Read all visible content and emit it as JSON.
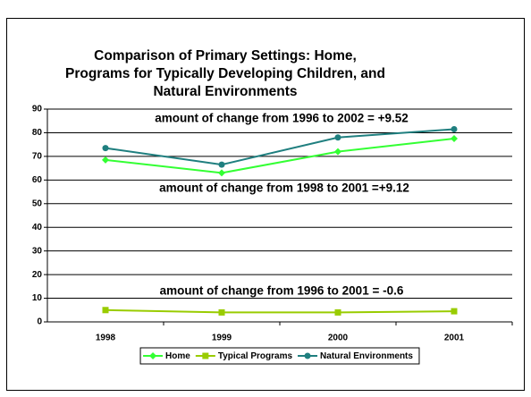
{
  "chart_data": {
    "type": "line",
    "title": "Comparison of Primary Settings: Home, Programs for Typically Developing Children, and Natural Environments",
    "categories": [
      "1998",
      "1999",
      "2000",
      "2001"
    ],
    "series": [
      {
        "name": "Home",
        "color": "#33ff33",
        "marker": "diamond",
        "values": [
          68.5,
          63,
          72,
          77.5
        ]
      },
      {
        "name": "Typical Programs",
        "color": "#99cc00",
        "marker": "square",
        "values": [
          5,
          4,
          4,
          4.5
        ]
      },
      {
        "name": "Natural Environments",
        "color": "#1f7f7f",
        "marker": "circle",
        "values": [
          73.5,
          66.5,
          78,
          81.5
        ]
      }
    ],
    "annotations": [
      "amount of change from 1996 to 2002 = +9.52",
      "amount of change from 1998 to 2001 =+9.12",
      "amount of change from 1996 to 2001 = -0.6"
    ],
    "ylim": [
      0,
      90
    ],
    "yticks": [
      0,
      10,
      20,
      30,
      40,
      50,
      60,
      70,
      80,
      90
    ],
    "grid": true,
    "legend": "bottom"
  }
}
